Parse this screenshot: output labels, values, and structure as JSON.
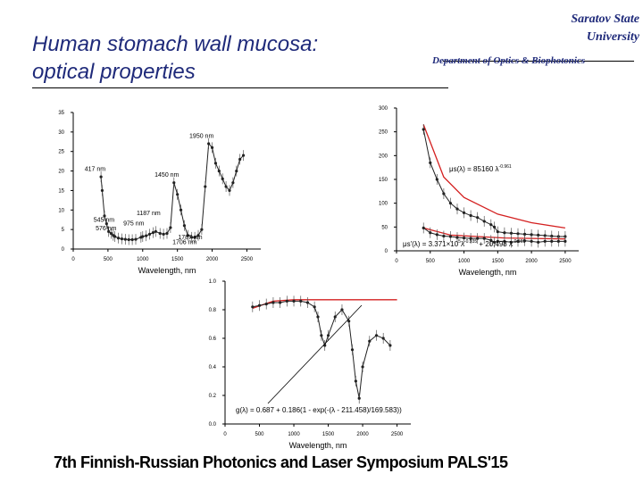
{
  "slide": {
    "title_line1": "Human stomach wall mucosa:",
    "title_line2": "optical properties",
    "university_line1": "Saratov State",
    "university_line2": "University",
    "department": "Department of Optics & Biophotonics",
    "footer": "7th Finnish-Russian Photonics and Laser Symposium PALS'15"
  },
  "colors": {
    "title": "#1f2a7a",
    "fit_line": "#d42020",
    "data_line": "#222222",
    "axis": "#000000"
  },
  "chart_data": [
    {
      "type": "line",
      "xlabel": "Wavelength, nm",
      "ylabel": "",
      "xlim": [
        0,
        2700
      ],
      "ylim": [
        0,
        35
      ],
      "xticks": [
        0,
        500,
        1000,
        1500,
        2000,
        2500
      ],
      "yticks": [
        0,
        5,
        10,
        15,
        20,
        25,
        30,
        35
      ],
      "series": [
        {
          "x": [
            400,
            417,
            450,
            480,
            510,
            545,
            576,
            600,
            650,
            700,
            750,
            800,
            850,
            900,
            975,
            1000,
            1050,
            1100,
            1150,
            1187,
            1250,
            1300,
            1350,
            1400,
            1450,
            1500,
            1550,
            1600,
            1650,
            1706,
            1750,
            1800,
            1850,
            1900,
            1950,
            2000,
            2050,
            2100,
            2150,
            2200,
            2250,
            2300,
            2350,
            2400,
            2450
          ],
          "y": [
            18.5,
            15,
            8.5,
            6.5,
            4.5,
            4.0,
            3.5,
            3.2,
            2.8,
            2.6,
            2.5,
            2.4,
            2.4,
            2.5,
            3.0,
            3.2,
            3.4,
            3.8,
            4.2,
            4.5,
            4.0,
            3.8,
            4.0,
            5.5,
            17,
            14,
            10,
            6,
            3.5,
            3.0,
            3.0,
            3.5,
            5.0,
            16,
            27,
            26,
            22,
            20,
            18,
            16,
            15,
            17,
            20,
            23,
            24
          ]
        }
      ],
      "annotations": [
        {
          "text": "417 nm",
          "x": 417,
          "y": 20
        },
        {
          "text": "1950 nm",
          "x": 1950,
          "y": 28.5
        },
        {
          "text": "1450 nm",
          "x": 1450,
          "y": 18.5
        },
        {
          "text": "545 nm",
          "x": 545,
          "y": 7.0
        },
        {
          "text": "576 nm",
          "x": 576,
          "y": 4.8
        },
        {
          "text": "975 nm",
          "x": 975,
          "y": 6.1
        },
        {
          "text": "1187 nm",
          "x": 1187,
          "y": 8.7
        },
        {
          "text": "1706 nm",
          "x": 1706,
          "y": 1.3
        },
        {
          "text": "1787 nm",
          "x": 1787,
          "y": 2.5
        }
      ]
    },
    {
      "type": "line",
      "xlabel": "Wavelength, nm",
      "ylabel": "",
      "xlim": [
        0,
        2700
      ],
      "ylim": [
        0,
        300
      ],
      "xticks": [
        0,
        500,
        1000,
        1500,
        2000,
        2500
      ],
      "yticks": [
        0,
        50,
        100,
        150,
        200,
        250,
        300
      ],
      "series": [
        {
          "x": [
            400,
            500,
            600,
            700,
            800,
            900,
            1000,
            1100,
            1200,
            1300,
            1400,
            1450,
            1500,
            1600,
            1700,
            1800,
            1900,
            2000,
            2100,
            2200,
            2300,
            2400,
            2500
          ],
          "y": [
            255,
            185,
            150,
            120,
            100,
            88,
            80,
            74,
            70,
            62,
            55,
            50,
            40,
            38,
            37,
            36,
            35,
            34,
            33,
            32,
            31,
            30,
            30
          ]
        },
        {
          "x": [
            400,
            500,
            600,
            700,
            800,
            900,
            1000,
            1100,
            1200,
            1300,
            1400,
            1450,
            1500,
            1600,
            1700,
            1800,
            1900,
            2000,
            2100,
            2200,
            2300,
            2400,
            2500
          ],
          "y": [
            48,
            38,
            34,
            31,
            30,
            28,
            27,
            26,
            26,
            26,
            22,
            18,
            20,
            20,
            18,
            20,
            21,
            20,
            18,
            20,
            20,
            20,
            20
          ]
        }
      ],
      "fits": [
        {
          "name": "μs(λ) = 85160 λ^-0.961",
          "x": [
            400,
            700,
            1000,
            1500,
            2000,
            2500
          ],
          "y": [
            265,
            155,
            112,
            77,
            59,
            48
          ]
        },
        {
          "name": "μs'(λ) = 3.371×10^5 λ^-0.935 + 20.498 λ^-0.161",
          "x": [
            400,
            800,
            1200,
            1600,
            2000,
            2500
          ],
          "y": [
            48,
            33,
            30,
            27,
            26,
            25
          ]
        }
      ],
      "equations": [
        "μs(λ) = 85160 λ",
        "-0.961",
        "μs'(λ) = 3.371×10",
        "5",
        "λ",
        "-0.935",
        " + 20.498 λ",
        "-0.161"
      ]
    },
    {
      "type": "line",
      "xlabel": "Wavelength, nm",
      "ylabel": "",
      "xlim": [
        0,
        2700
      ],
      "ylim": [
        0,
        1.0
      ],
      "xticks": [
        0,
        500,
        1000,
        1500,
        2000,
        2500
      ],
      "yticks": [
        0.0,
        0.2,
        0.4,
        0.6,
        0.8,
        1.0
      ],
      "series": [
        {
          "x": [
            400,
            500,
            600,
            700,
            800,
            900,
            1000,
            1100,
            1200,
            1300,
            1350,
            1400,
            1450,
            1500,
            1600,
            1700,
            1800,
            1850,
            1900,
            1950,
            2000,
            2100,
            2200,
            2300,
            2400
          ],
          "y": [
            0.82,
            0.83,
            0.84,
            0.85,
            0.85,
            0.86,
            0.86,
            0.86,
            0.85,
            0.82,
            0.75,
            0.62,
            0.55,
            0.62,
            0.75,
            0.8,
            0.72,
            0.52,
            0.3,
            0.18,
            0.4,
            0.58,
            0.62,
            0.6,
            0.55
          ]
        }
      ],
      "fits": [
        {
          "name": "g(λ) = 0.687 + 0.186(1 - exp(-(λ - 211.458)/169.583))",
          "x": [
            400,
            700,
            1000,
            1500,
            2000,
            2500
          ],
          "y": [
            0.81,
            0.86,
            0.87,
            0.87,
            0.87,
            0.87
          ]
        }
      ],
      "equations": [
        "g(λ) = 0.687 + 0.186(1 - exp(-(λ - 211.458)/169.583))"
      ]
    }
  ]
}
